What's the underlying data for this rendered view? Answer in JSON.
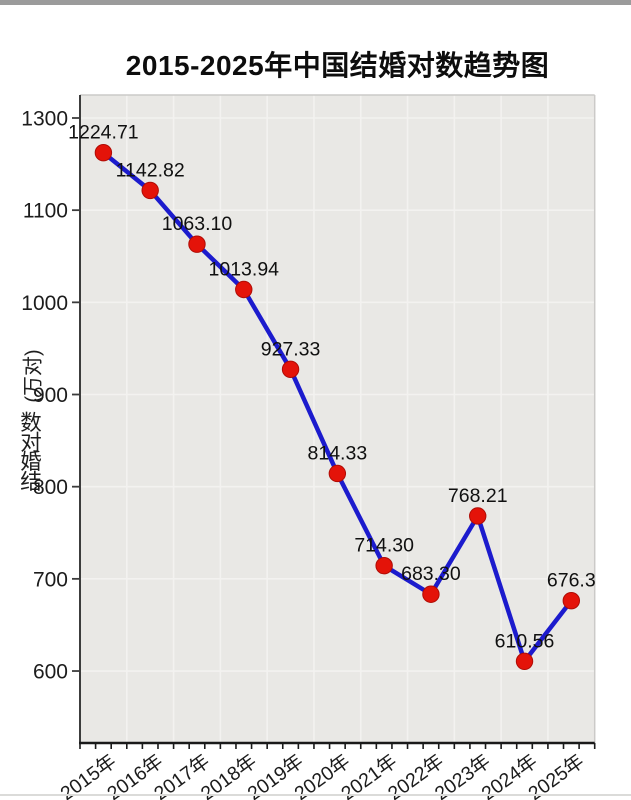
{
  "page": {
    "top_bar_color": "#9b9b9b"
  },
  "chart_data": {
    "type": "line",
    "title": "2015-2025年中国结婚对数趋势图",
    "xlabel": "",
    "ylabel": "结婚对数(万对)",
    "categories": [
      "2015年",
      "2016年",
      "2017年",
      "2018年",
      "2019年",
      "2020年",
      "2021年",
      "2022年",
      "2023年",
      "2024年",
      "2025年"
    ],
    "series": [
      {
        "name": "结婚对数",
        "values": [
          1224.71,
          1142.82,
          1063.1,
          1013.94,
          927.33,
          814.33,
          714.3,
          683.3,
          768.21,
          610.56,
          676.3
        ],
        "point_labels": [
          "1224.71",
          "1142.82",
          "1063.10",
          "1013.94",
          "927.33",
          "814.33",
          "714.30",
          "683.30",
          "768.21",
          "610.56",
          "676.3"
        ]
      }
    ],
    "yticks": [
      1300,
      1100,
      1000,
      900,
      800,
      700,
      600
    ],
    "ylim": [
      560,
      1320
    ],
    "grid": true,
    "legend": "none",
    "colors": {
      "line": "#1c1bcd",
      "marker": "#e41309",
      "marker_edge": "#b00c05",
      "plot_bg": "#e9e8e5",
      "grid": "#f3f2f0",
      "axis": "#1a1a1a",
      "spine_light": "#cbcac8",
      "spine_left": "#3c3c3c",
      "text": "#1c1c1c"
    }
  }
}
